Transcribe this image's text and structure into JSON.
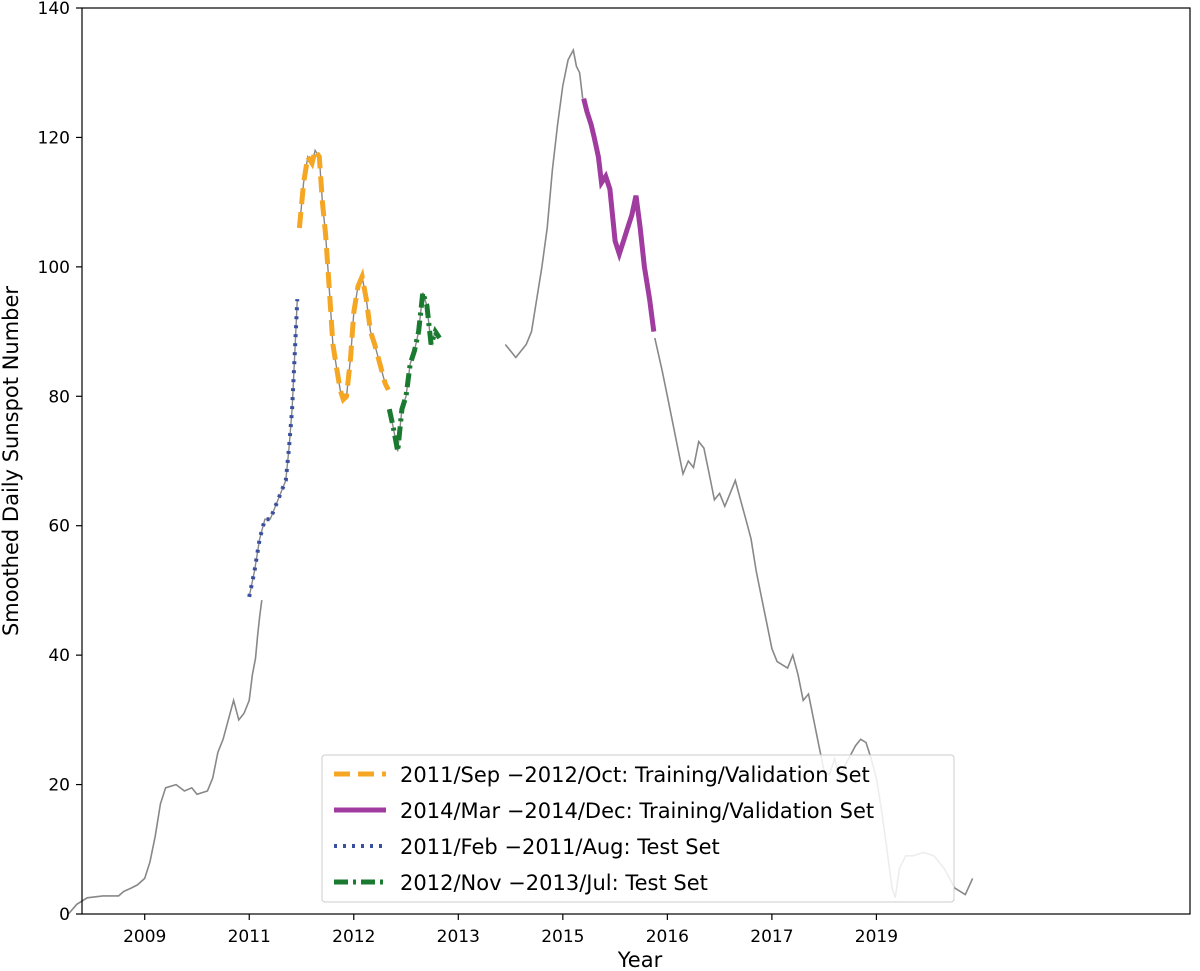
{
  "chart_data": {
    "type": "line",
    "xlabel": "Year",
    "ylabel": "Smoothed Daily Sunspot Number",
    "xlim": [
      2008.4,
      2019.0
    ],
    "ylim": [
      0,
      140
    ],
    "grid": false,
    "legend_placement": "bottom-center",
    "x_ticks": [
      {
        "value": 2009,
        "label": "2009"
      },
      {
        "value": 2010,
        "label": "2011"
      },
      {
        "value": 2011,
        "label": "2012"
      },
      {
        "value": 2012,
        "label": "2013"
      },
      {
        "value": 2013,
        "label": "2015"
      },
      {
        "value": 2014,
        "label": "2016"
      },
      {
        "value": 2015,
        "label": "2017"
      },
      {
        "value": 2016,
        "label": "2019"
      }
    ],
    "y_ticks": [
      0,
      20,
      40,
      60,
      80,
      100,
      120,
      140
    ],
    "background_series": {
      "color": "#888888",
      "points": [
        [
          2008.27,
          0
        ],
        [
          2008.35,
          1.5
        ],
        [
          2008.45,
          2.5
        ],
        [
          2008.6,
          2.8
        ],
        [
          2008.75,
          2.8
        ],
        [
          2008.8,
          3.5
        ],
        [
          2008.87,
          4
        ],
        [
          2008.93,
          4.5
        ],
        [
          2009.0,
          5.5
        ],
        [
          2009.05,
          8
        ],
        [
          2009.1,
          12
        ],
        [
          2009.15,
          17
        ],
        [
          2009.2,
          19.5
        ],
        [
          2009.3,
          20
        ],
        [
          2009.38,
          19
        ],
        [
          2009.45,
          19.5
        ],
        [
          2009.5,
          18.5
        ],
        [
          2009.6,
          19
        ],
        [
          2009.65,
          21
        ],
        [
          2009.7,
          25
        ],
        [
          2009.75,
          27
        ],
        [
          2009.8,
          30
        ],
        [
          2009.85,
          33
        ],
        [
          2009.9,
          30
        ],
        [
          2009.95,
          31
        ],
        [
          2010.0,
          33
        ],
        [
          2010.03,
          37
        ],
        [
          2010.06,
          39.5
        ],
        [
          2010.08,
          43
        ],
        [
          2010.1,
          46
        ],
        [
          2010.12,
          48.5
        ]
      ]
    },
    "background_series_mid": {
      "color": "#888888",
      "points": [
        [
          2012.45,
          88
        ],
        [
          2012.5,
          87
        ],
        [
          2012.55,
          86
        ],
        [
          2012.6,
          87
        ],
        [
          2012.65,
          88
        ],
        [
          2012.7,
          90
        ],
        [
          2012.75,
          95
        ],
        [
          2012.8,
          100
        ],
        [
          2012.85,
          106
        ],
        [
          2012.9,
          115
        ],
        [
          2012.95,
          122
        ],
        [
          2013.0,
          128
        ],
        [
          2013.05,
          132
        ],
        [
          2013.1,
          133.5
        ],
        [
          2013.13,
          131
        ],
        [
          2013.16,
          130
        ],
        [
          2013.19,
          126
        ]
      ]
    },
    "background_series_late": {
      "color": "#888888",
      "points": [
        [
          2013.88,
          89
        ],
        [
          2013.95,
          84
        ],
        [
          2014.0,
          80
        ],
        [
          2014.05,
          76
        ],
        [
          2014.1,
          72
        ],
        [
          2014.15,
          68
        ],
        [
          2014.2,
          70
        ],
        [
          2014.25,
          69
        ],
        [
          2014.3,
          73
        ],
        [
          2014.35,
          72
        ],
        [
          2014.4,
          68
        ],
        [
          2014.45,
          64
        ],
        [
          2014.5,
          65
        ],
        [
          2014.55,
          63
        ],
        [
          2014.6,
          65
        ],
        [
          2014.65,
          67
        ],
        [
          2014.7,
          64
        ],
        [
          2014.75,
          61
        ],
        [
          2014.8,
          58
        ],
        [
          2014.85,
          53
        ],
        [
          2014.9,
          49
        ],
        [
          2014.95,
          45
        ],
        [
          2015.0,
          41
        ],
        [
          2015.05,
          39
        ],
        [
          2015.1,
          38.5
        ],
        [
          2015.15,
          38
        ],
        [
          2015.2,
          40
        ],
        [
          2015.25,
          37
        ],
        [
          2015.3,
          33
        ],
        [
          2015.35,
          34
        ],
        [
          2015.4,
          30
        ],
        [
          2015.45,
          26
        ],
        [
          2015.5,
          22
        ],
        [
          2015.55,
          21.5
        ],
        [
          2015.6,
          24
        ],
        [
          2015.65,
          21
        ],
        [
          2015.7,
          23
        ],
        [
          2015.75,
          24.5
        ],
        [
          2015.8,
          26
        ],
        [
          2015.85,
          27
        ],
        [
          2015.9,
          26.5
        ],
        [
          2015.95,
          24
        ],
        [
          2016.0,
          21
        ],
        [
          2016.05,
          16
        ],
        [
          2016.1,
          10
        ],
        [
          2016.15,
          4
        ],
        [
          2016.18,
          2.5
        ],
        [
          2016.22,
          7
        ],
        [
          2016.28,
          9
        ],
        [
          2016.35,
          9
        ],
        [
          2016.45,
          9.5
        ],
        [
          2016.55,
          9
        ],
        [
          2016.65,
          7
        ],
        [
          2016.75,
          4
        ],
        [
          2016.85,
          3
        ],
        [
          2016.92,
          5.5
        ]
      ]
    },
    "series": [
      {
        "name": "2011/Sep −2012/Oct: Training/Validation Set",
        "color": "#f5a623",
        "style": "dashed",
        "points": [
          [
            2010.48,
            106
          ],
          [
            2010.52,
            113
          ],
          [
            2010.56,
            117
          ],
          [
            2010.6,
            116
          ],
          [
            2010.63,
            118
          ],
          [
            2010.67,
            117
          ],
          [
            2010.7,
            110
          ],
          [
            2010.73,
            105
          ],
          [
            2010.76,
            98
          ],
          [
            2010.8,
            88
          ],
          [
            2010.84,
            84
          ],
          [
            2010.87,
            81
          ],
          [
            2010.9,
            79.5
          ],
          [
            2010.93,
            80
          ],
          [
            2010.97,
            86
          ],
          [
            2011.0,
            93
          ],
          [
            2011.04,
            97
          ],
          [
            2011.08,
            98.5
          ],
          [
            2011.12,
            95
          ],
          [
            2011.16,
            90
          ],
          [
            2011.2,
            88
          ],
          [
            2011.25,
            85
          ],
          [
            2011.3,
            82
          ],
          [
            2011.33,
            81
          ]
        ]
      },
      {
        "name": "2014/Mar −2014/Dec: Training/Validation Set",
        "color": "#a03ca0",
        "style": "solid",
        "points": [
          [
            2013.2,
            126
          ],
          [
            2013.23,
            124
          ],
          [
            2013.27,
            122
          ],
          [
            2013.3,
            120
          ],
          [
            2013.34,
            117
          ],
          [
            2013.37,
            113
          ],
          [
            2013.41,
            114
          ],
          [
            2013.45,
            112
          ],
          [
            2013.5,
            104
          ],
          [
            2013.54,
            102
          ],
          [
            2013.58,
            104
          ],
          [
            2013.62,
            106
          ],
          [
            2013.66,
            108
          ],
          [
            2013.7,
            111
          ],
          [
            2013.74,
            106
          ],
          [
            2013.78,
            100
          ],
          [
            2013.83,
            95
          ],
          [
            2013.87,
            90
          ]
        ]
      },
      {
        "name": "2011/Feb −2011/Aug: Test Set",
        "color": "#3a4fa0",
        "style": "dotted",
        "points": [
          [
            2010.0,
            49
          ],
          [
            2010.05,
            53
          ],
          [
            2010.1,
            58
          ],
          [
            2010.15,
            61
          ],
          [
            2010.2,
            61
          ],
          [
            2010.25,
            63
          ],
          [
            2010.3,
            65
          ],
          [
            2010.35,
            67
          ],
          [
            2010.38,
            72
          ],
          [
            2010.41,
            78
          ],
          [
            2010.44,
            88
          ],
          [
            2010.46,
            95
          ]
        ]
      },
      {
        "name": "2012/Nov −2013/Jul: Test Set",
        "color": "#1a7a30",
        "style": "dashdot",
        "points": [
          [
            2011.34,
            78
          ],
          [
            2011.38,
            75
          ],
          [
            2011.42,
            71.5
          ],
          [
            2011.46,
            78
          ],
          [
            2011.5,
            80
          ],
          [
            2011.54,
            85
          ],
          [
            2011.58,
            87
          ],
          [
            2011.62,
            90
          ],
          [
            2011.66,
            96
          ],
          [
            2011.7,
            94
          ],
          [
            2011.74,
            88
          ],
          [
            2011.78,
            90
          ],
          [
            2011.82,
            89
          ]
        ]
      }
    ]
  }
}
